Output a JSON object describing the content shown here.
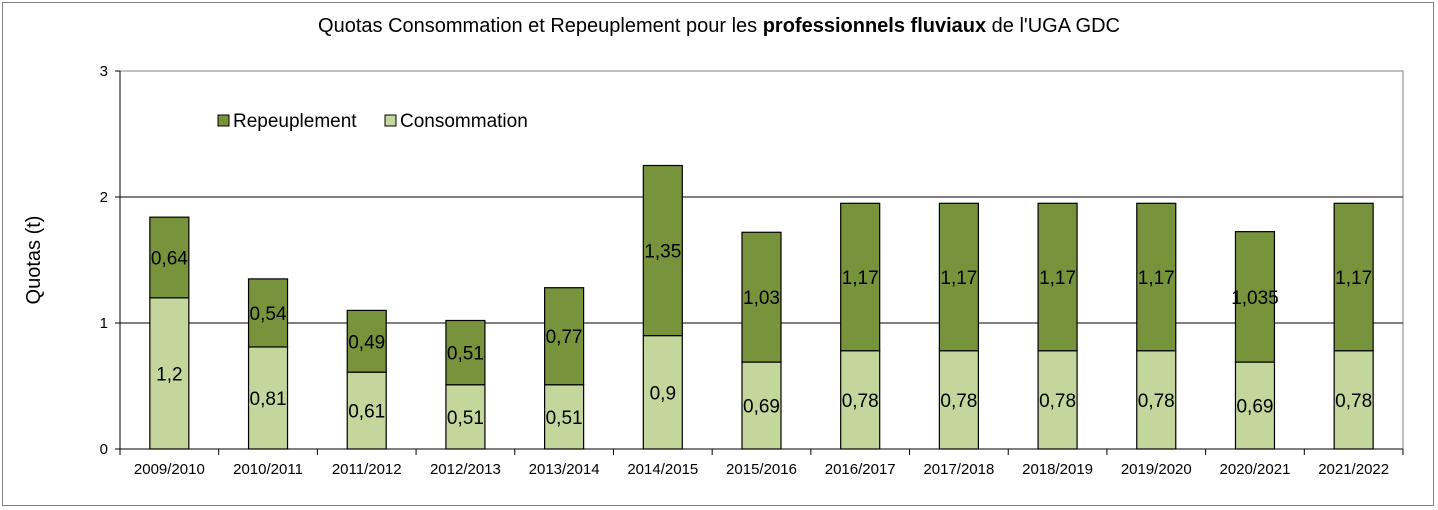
{
  "chart_data": {
    "type": "bar",
    "stacked": true,
    "title_parts": [
      "Quotas Consommation et Repeuplement  pour les ",
      "professionnels fluviaux",
      " de l'UGA GDC"
    ],
    "ylabel": "Quotas (t)",
    "xlabel": "",
    "ylim": [
      0,
      3
    ],
    "yticks": [
      "0",
      "1",
      "2",
      "3"
    ],
    "grid": true,
    "legend_position": "top-left",
    "categories": [
      "2009/2010",
      "2010/2011",
      "2011/2012",
      "2012/2013",
      "2013/2014",
      "2014/2015",
      "2015/2016",
      "2016/2017",
      "2017/2018",
      "2018/2019",
      "2019/2020",
      "2020/2021",
      "2021/2022"
    ],
    "series": [
      {
        "name": "Consommation",
        "color": "#c3d69b",
        "values": [
          1.2,
          0.81,
          0.61,
          0.51,
          0.51,
          0.9,
          0.69,
          0.78,
          0.78,
          0.78,
          0.78,
          0.69,
          0.78
        ],
        "labels": [
          "1,2",
          "0,81",
          "0,61",
          "0,51",
          "0,51",
          "0,9",
          "0,69",
          "0,78",
          "0,78",
          "0,78",
          "0,78",
          "0,69",
          "0,78"
        ]
      },
      {
        "name": "Repeuplement",
        "color": "#77933c",
        "values": [
          0.64,
          0.54,
          0.49,
          0.51,
          0.77,
          1.35,
          1.03,
          1.17,
          1.17,
          1.17,
          1.17,
          1.035,
          1.17
        ],
        "labels": [
          "0,64",
          "0,54",
          "0,49",
          "0,51",
          "0,77",
          "1,35",
          "1,03",
          "1,17",
          "1,17",
          "1,17",
          "1,17",
          "1,035",
          "1,17"
        ]
      }
    ]
  }
}
